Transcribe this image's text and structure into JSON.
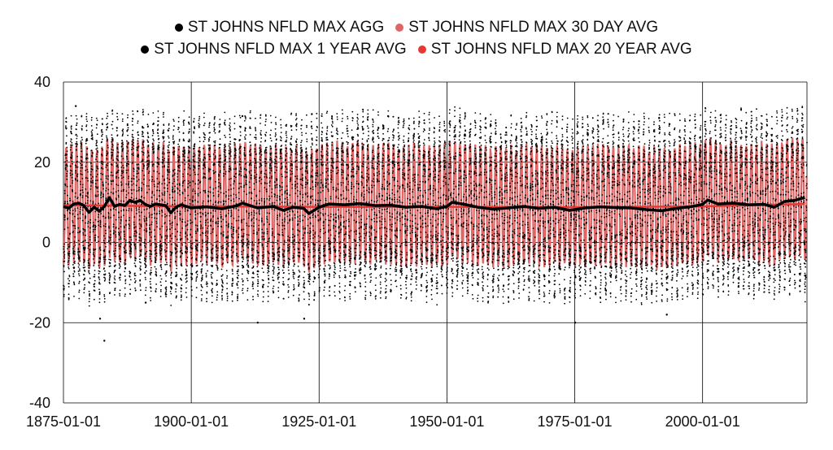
{
  "chart_data": {
    "type": "scatter",
    "title": "",
    "xlabel": "",
    "ylabel": "",
    "xlim": [
      "1875-01-01",
      "2020-06-01"
    ],
    "ylim": [
      -40,
      40
    ],
    "x_ticks": [
      "1875-01-01",
      "1900-01-01",
      "1925-01-01",
      "1950-01-01",
      "1975-01-01",
      "2000-01-01"
    ],
    "y_ticks": [
      40,
      20,
      0,
      -20,
      -40
    ],
    "grid": true,
    "legend_position": "top",
    "series": [
      {
        "name": "ST JOHNS NFLD MAX AGG",
        "color": "#000000",
        "typical_range": [
          -10,
          28
        ],
        "extremes": [
          {
            "x": "1877-06-01",
            "y": 34
          },
          {
            "x": "1882-03-01",
            "y": -19
          },
          {
            "x": "1883-01-01",
            "y": -24.5
          },
          {
            "x": "1891-02-01",
            "y": -15
          },
          {
            "x": "1910-01-01",
            "y": 31.5
          },
          {
            "x": "1913-01-01",
            "y": -20
          },
          {
            "x": "1923-08-01",
            "y": 32
          },
          {
            "x": "1922-02-01",
            "y": -19
          },
          {
            "x": "1938-07-01",
            "y": 31.5
          },
          {
            "x": "1975-02-01",
            "y": -20
          },
          {
            "x": "1993-01-01",
            "y": -18
          },
          {
            "x": "1991-07-01",
            "y": 31
          },
          {
            "x": "2019-07-01",
            "y": 31
          }
        ]
      },
      {
        "name": "ST JOHNS NFLD MAX 30 DAY AVG",
        "color": "#e06666",
        "typical_range": [
          -5,
          24
        ]
      },
      {
        "name": "ST JOHNS NFLD MAX 1 YEAR AVG",
        "color": "#000000",
        "points": [
          {
            "x": "1875",
            "y": 9.0
          },
          {
            "x": "1876",
            "y": 8.5
          },
          {
            "x": "1877",
            "y": 9.6
          },
          {
            "x": "1878",
            "y": 9.8
          },
          {
            "x": "1879",
            "y": 9.2
          },
          {
            "x": "1880",
            "y": 7.5
          },
          {
            "x": "1881",
            "y": 8.8
          },
          {
            "x": "1882",
            "y": 7.8
          },
          {
            "x": "1883",
            "y": 9.0
          },
          {
            "x": "1884",
            "y": 11.2
          },
          {
            "x": "1885",
            "y": 9.0
          },
          {
            "x": "1886",
            "y": 9.5
          },
          {
            "x": "1887",
            "y": 9.2
          },
          {
            "x": "1888",
            "y": 10.5
          },
          {
            "x": "1889",
            "y": 10.0
          },
          {
            "x": "1890",
            "y": 10.5
          },
          {
            "x": "1891",
            "y": 9.5
          },
          {
            "x": "1892",
            "y": 9.0
          },
          {
            "x": "1893",
            "y": 9.6
          },
          {
            "x": "1894",
            "y": 9.4
          },
          {
            "x": "1895",
            "y": 9.2
          },
          {
            "x": "1896",
            "y": 7.4
          },
          {
            "x": "1897",
            "y": 8.8
          },
          {
            "x": "1898",
            "y": 9.4
          },
          {
            "x": "1900",
            "y": 8.6
          },
          {
            "x": "1903",
            "y": 8.9
          },
          {
            "x": "1906",
            "y": 8.4
          },
          {
            "x": "1909",
            "y": 9.2
          },
          {
            "x": "1910",
            "y": 9.8
          },
          {
            "x": "1913",
            "y": 8.6
          },
          {
            "x": "1916",
            "y": 9.0
          },
          {
            "x": "1918",
            "y": 8.0
          },
          {
            "x": "1920",
            "y": 8.8
          },
          {
            "x": "1922",
            "y": 8.5
          },
          {
            "x": "1923",
            "y": 7.2
          },
          {
            "x": "1925",
            "y": 8.8
          },
          {
            "x": "1927",
            "y": 9.6
          },
          {
            "x": "1930",
            "y": 9.4
          },
          {
            "x": "1933",
            "y": 9.7
          },
          {
            "x": "1936",
            "y": 9.2
          },
          {
            "x": "1939",
            "y": 9.3
          },
          {
            "x": "1942",
            "y": 8.8
          },
          {
            "x": "1945",
            "y": 9.0
          },
          {
            "x": "1948",
            "y": 8.4
          },
          {
            "x": "1950",
            "y": 9.0
          },
          {
            "x": "1951",
            "y": 10.0
          },
          {
            "x": "1953",
            "y": 9.6
          },
          {
            "x": "1956",
            "y": 8.8
          },
          {
            "x": "1959",
            "y": 8.3
          },
          {
            "x": "1962",
            "y": 8.6
          },
          {
            "x": "1965",
            "y": 9.0
          },
          {
            "x": "1968",
            "y": 8.5
          },
          {
            "x": "1971",
            "y": 8.8
          },
          {
            "x": "1974",
            "y": 8.0
          },
          {
            "x": "1977",
            "y": 8.6
          },
          {
            "x": "1980",
            "y": 8.9
          },
          {
            "x": "1983",
            "y": 8.7
          },
          {
            "x": "1986",
            "y": 8.6
          },
          {
            "x": "1989",
            "y": 8.2
          },
          {
            "x": "1992",
            "y": 7.9
          },
          {
            "x": "1995",
            "y": 8.5
          },
          {
            "x": "1998",
            "y": 9.0
          },
          {
            "x": "2000",
            "y": 9.5
          },
          {
            "x": "2001",
            "y": 10.6
          },
          {
            "x": "2003",
            "y": 9.6
          },
          {
            "x": "2006",
            "y": 9.8
          },
          {
            "x": "2009",
            "y": 9.4
          },
          {
            "x": "2012",
            "y": 9.5
          },
          {
            "x": "2014",
            "y": 8.8
          },
          {
            "x": "2016",
            "y": 10.2
          },
          {
            "x": "2018",
            "y": 10.5
          },
          {
            "x": "2020",
            "y": 11.2
          }
        ]
      },
      {
        "name": "ST JOHNS NFLD MAX 20 YEAR AVG",
        "color": "#e53935",
        "points": [
          {
            "x": "1875",
            "y": 9.3
          },
          {
            "x": "1900",
            "y": 9.0
          },
          {
            "x": "1925",
            "y": 8.9
          },
          {
            "x": "1950",
            "y": 8.9
          },
          {
            "x": "1975",
            "y": 8.8
          },
          {
            "x": "2000",
            "y": 9.0
          },
          {
            "x": "2020",
            "y": 9.6
          }
        ]
      }
    ]
  }
}
